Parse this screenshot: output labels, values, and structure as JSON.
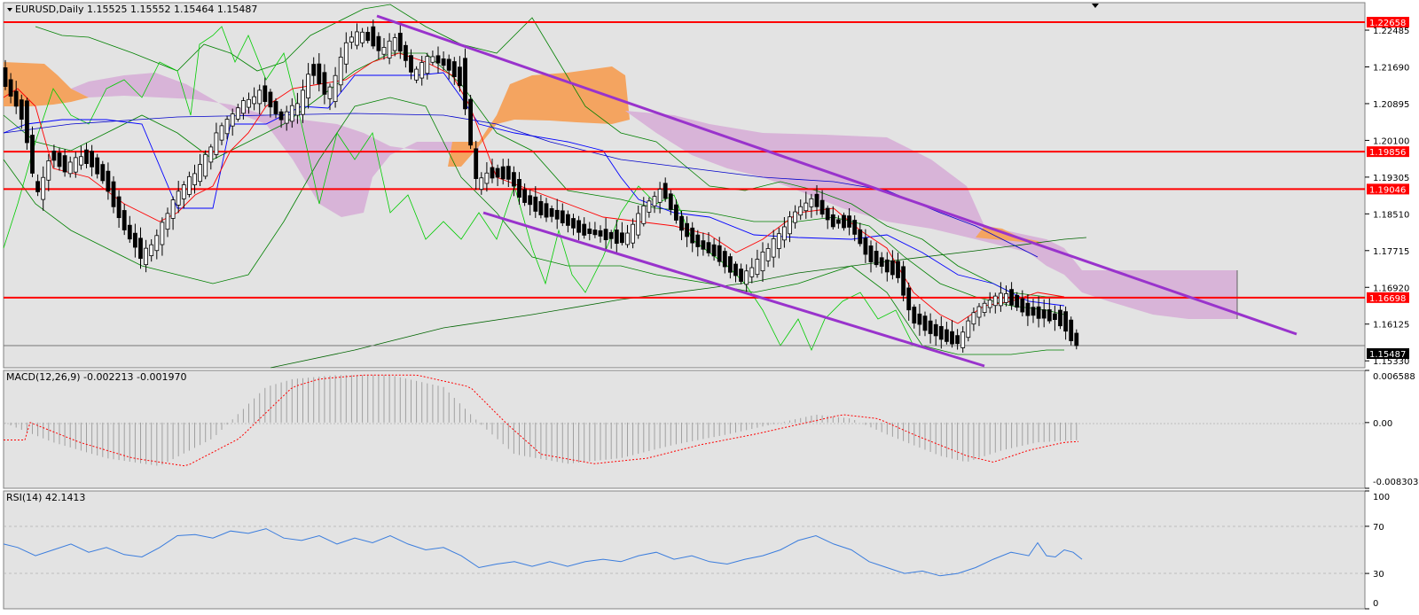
{
  "window": {
    "symbol_line": "EURUSD,Daily  1.15525 1.15552 1.15464 1.15487",
    "menu_arrow_icon": "triangle-down-icon",
    "shift_marker_icon": "triangle-down-icon"
  },
  "main_chart": {
    "price_range": [
      1.1518,
      1.2308
    ],
    "price_ticks": [
      "1.22485",
      "1.21690",
      "1.20895",
      "1.20100",
      "1.19305",
      "1.18510",
      "1.17715",
      "1.16920",
      "1.16125",
      "1.15330"
    ],
    "price_tick_values": [
      1.22485,
      1.2169,
      1.20895,
      1.201,
      1.19305,
      1.1851,
      1.17715,
      1.1692,
      1.16125,
      1.1533
    ],
    "levels": [
      {
        "label": "1.22658",
        "value": 1.22658
      },
      {
        "label": "1.19856",
        "value": 1.19856
      },
      {
        "label": "1.19046",
        "value": 1.19046
      },
      {
        "label": "1.16698",
        "value": 1.16698
      }
    ],
    "current_price": {
      "label": "1.15487",
      "value": 1.15487
    },
    "colors": {
      "level": "#ff0000",
      "channel": "#9933cc",
      "bullish_body": "#ffffff",
      "bearish_body": "#000000",
      "cloud_bull": "#f4a460",
      "cloud_bear": "#d8b4d8",
      "tenkan": "#ff0000",
      "kijun": "#0000ff",
      "chikou": "#00cc00",
      "bollinger": "#008000"
    }
  },
  "macd_panel": {
    "label": "MACD(12,26,9) -0.002213 -0.001970",
    "scale": [
      "0.006588",
      "0.00",
      "-0.008303"
    ],
    "scale_values": [
      0.006588,
      0.0,
      -0.008303
    ]
  },
  "rsi_panel": {
    "label": "RSI(14) 42.1413",
    "scale": [
      "100",
      "70",
      "30",
      "0"
    ],
    "scale_values": [
      100,
      70,
      30,
      0
    ]
  }
}
